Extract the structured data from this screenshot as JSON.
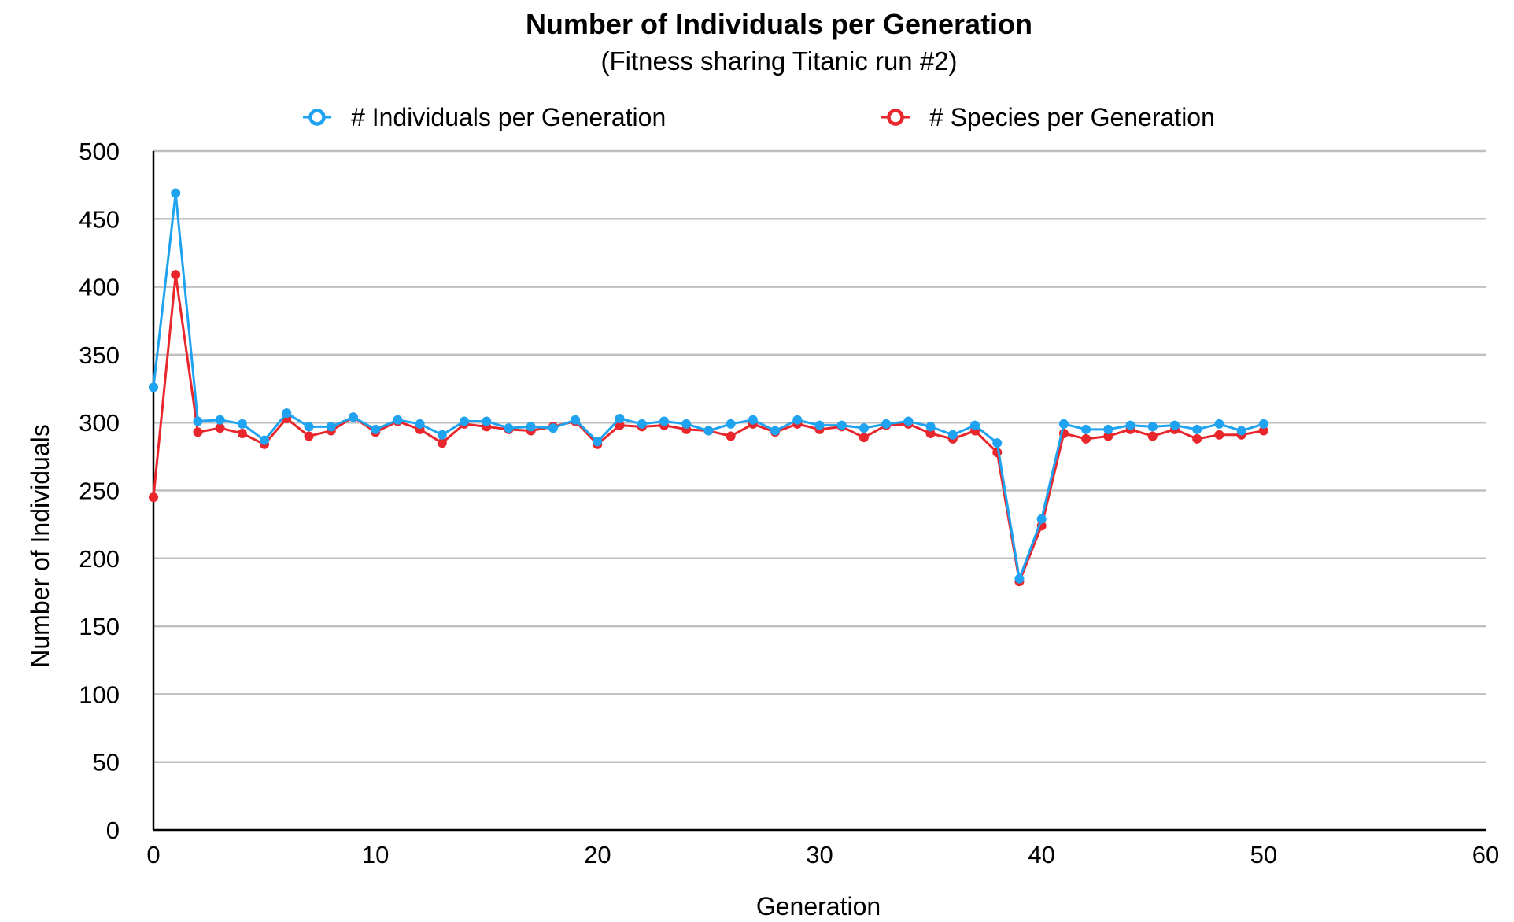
{
  "chart_data": {
    "type": "line",
    "title": "Number of Individuals per Generation",
    "subtitle": "(Fitness sharing Titanic run #2)",
    "xlabel": "Generation",
    "ylabel": "Number of Individuals",
    "xlim": [
      0,
      60
    ],
    "ylim": [
      0,
      500
    ],
    "xticks": [
      0,
      10,
      20,
      30,
      40,
      50,
      60
    ],
    "yticks": [
      0,
      50,
      100,
      150,
      200,
      250,
      300,
      350,
      400,
      450,
      500
    ],
    "grid": "horizontal",
    "legend_position": "top",
    "x": [
      0,
      1,
      2,
      3,
      4,
      5,
      6,
      7,
      8,
      9,
      10,
      11,
      12,
      13,
      14,
      15,
      16,
      17,
      18,
      19,
      20,
      21,
      22,
      23,
      24,
      25,
      26,
      27,
      28,
      29,
      30,
      31,
      32,
      33,
      34,
      35,
      36,
      37,
      38,
      39,
      40,
      41,
      42,
      43,
      44,
      45,
      46,
      47,
      48,
      49,
      50
    ],
    "series": [
      {
        "name": "# Individuals per Generation",
        "color": "#1FA3F0",
        "values": [
          326,
          469,
          301,
          302,
          299,
          287,
          307,
          297,
          297,
          304,
          295,
          302,
          299,
          291,
          301,
          301,
          296,
          297,
          296,
          302,
          286,
          303,
          299,
          301,
          299,
          294,
          299,
          302,
          294,
          302,
          298,
          298,
          296,
          299,
          301,
          297,
          291,
          298,
          285,
          185,
          229,
          299,
          295,
          295,
          298,
          297,
          298,
          295,
          299,
          294,
          299
        ]
      },
      {
        "name": "# Species per Generation",
        "color": "#E8262B",
        "values": [
          245,
          409,
          293,
          296,
          292,
          284,
          303,
          290,
          294,
          304,
          293,
          301,
          295,
          285,
          299,
          297,
          295,
          294,
          297,
          301,
          284,
          298,
          297,
          298,
          295,
          294,
          290,
          299,
          293,
          299,
          295,
          297,
          289,
          298,
          299,
          292,
          288,
          294,
          278,
          183,
          224,
          292,
          288,
          290,
          295,
          290,
          295,
          288,
          291,
          291,
          294
        ]
      }
    ]
  }
}
